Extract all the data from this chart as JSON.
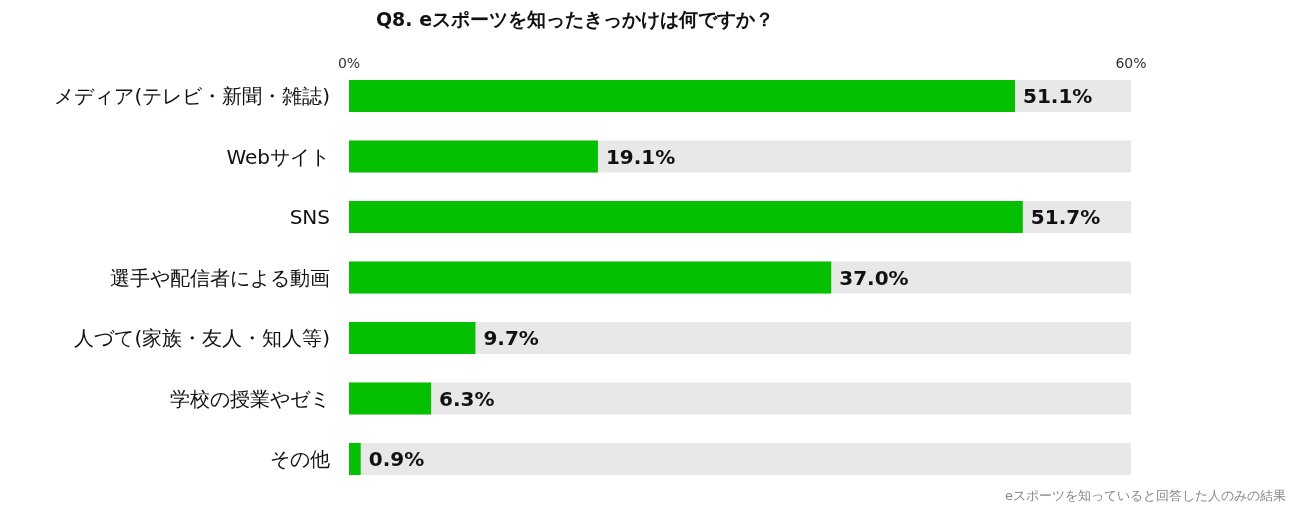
{
  "chart_data": {
    "type": "bar",
    "orientation": "horizontal",
    "title": "Q8. eスポーツを知ったきっかけは何ですか？",
    "categories": [
      "メディア(テレビ・新聞・雑誌)",
      "Webサイト",
      "SNS",
      "選手や配信者による動画",
      "人づて(家族・友人・知人等)",
      "学校の授業やゼミ",
      "その他"
    ],
    "values": [
      51.1,
      19.1,
      51.7,
      37.0,
      9.7,
      6.3,
      0.9
    ],
    "color": "#05c000",
    "value_labels": [
      "51.1%",
      "19.1%",
      "51.7%",
      "37.0%",
      "9.7%",
      "6.3%",
      "0.9%"
    ],
    "xlim": [
      0,
      60
    ],
    "xticks": [
      {
        "value": 0,
        "label": "0%"
      },
      {
        "value": 60,
        "label": "60%"
      }
    ],
    "grid": false,
    "annotations": [
      "eスポーツを知っていると回答した人のみの結果"
    ]
  }
}
